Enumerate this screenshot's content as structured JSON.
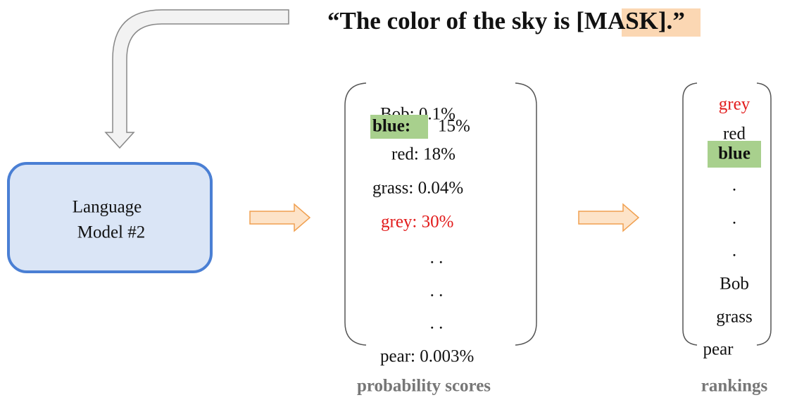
{
  "prompt": {
    "before": "“The color of the sky is ",
    "mask": "[MASK].",
    "after": "”"
  },
  "model": {
    "lines": [
      "Language",
      "Model #2"
    ]
  },
  "probabilities": {
    "items": [
      "Bob: 0.1%",
      "blue:",
      "15%",
      "red: 18%",
      "grass: 0.04%",
      "grey: 30%",
      ". .",
      ". .",
      ". .",
      "pear: 0.003%"
    ],
    "caption": "probability scores"
  },
  "rankings": {
    "items": [
      "grey",
      "red",
      "blue",
      ".",
      ".",
      ".",
      "Bob",
      "grass",
      "pear"
    ],
    "caption": "rankings"
  }
}
